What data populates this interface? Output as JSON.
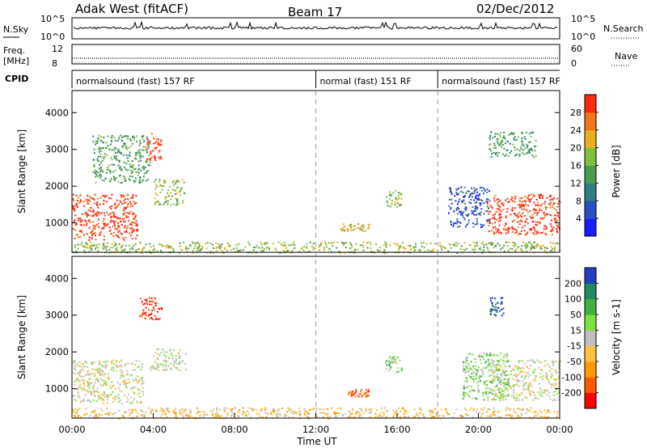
{
  "header": {
    "station": "Adak West (fitACF)",
    "beam": "Beam 17",
    "date": "02/Dec/2012"
  },
  "strip_panels": {
    "nsky_label": "N.Sky",
    "nsky_ticks": [
      "10^5",
      "10^0"
    ],
    "nsearch_label": "N.Search",
    "nsearch_ticks": [
      "10^5",
      "10^0"
    ],
    "freq_label": "Freq.",
    "freq_unit": "[MHz]",
    "freq_ticks": [
      "12",
      "8"
    ],
    "nave_label": "Nave",
    "nave_ticks": [
      "60",
      "0"
    ],
    "cpid_label": "CPID",
    "cpid_segments": [
      {
        "label": "normalsound (fast) 157 RF",
        "start_h": 0,
        "end_h": 12
      },
      {
        "label": "normal (fast) 151 RF",
        "start_h": 12,
        "end_h": 18
      },
      {
        "label": "normalsound (fast) 157 RF",
        "start_h": 18,
        "end_h": 24
      }
    ]
  },
  "chart_data": [
    {
      "type": "heatmap",
      "parameter": "Power",
      "ylabel": "Slant Range [km]",
      "ylim": [
        200,
        4600
      ],
      "yticks": [
        "1000",
        "2000",
        "3000",
        "4000"
      ],
      "xlim": [
        0,
        24
      ],
      "colorbar": {
        "label": "Power [dB]",
        "range": [
          0,
          32
        ],
        "ticks": [
          "4",
          "8",
          "12",
          "16",
          "20",
          "24",
          "28"
        ],
        "colors": [
          "#1a1aff",
          "#2a4fc0",
          "#2e7f7f",
          "#4a9a50",
          "#7fc040",
          "#e8b020",
          "#f07818",
          "#ff2a10"
        ]
      },
      "regions": [
        {
          "t0": 0.0,
          "t1": 3.2,
          "r0": 550,
          "r1": 1800,
          "level": 7
        },
        {
          "t0": 3.6,
          "t1": 4.4,
          "r0": 2700,
          "r1": 3500,
          "level": 7
        },
        {
          "t0": 1.0,
          "t1": 3.8,
          "r0": 2100,
          "r1": 3400,
          "level": 3
        },
        {
          "t0": 4.0,
          "t1": 5.5,
          "r0": 1500,
          "r1": 2200,
          "level": 4
        },
        {
          "t0": 13.2,
          "t1": 14.6,
          "r0": 800,
          "r1": 1000,
          "level": 5
        },
        {
          "t0": 15.4,
          "t1": 16.2,
          "r0": 1450,
          "r1": 1900,
          "level": 4
        },
        {
          "t0": 20.4,
          "t1": 24.0,
          "r0": 700,
          "r1": 1800,
          "level": 7
        },
        {
          "t0": 18.5,
          "t1": 20.5,
          "r0": 900,
          "r1": 2000,
          "level": 1
        },
        {
          "t0": 20.5,
          "t1": 22.8,
          "r0": 2800,
          "r1": 3500,
          "level": 3
        },
        {
          "t0": 0.0,
          "t1": 24.0,
          "r0": 200,
          "r1": 500,
          "level": 4
        }
      ]
    },
    {
      "type": "heatmap",
      "parameter": "Velocity",
      "ylabel": "Slant Range [km]",
      "ylim": [
        200,
        4600
      ],
      "yticks": [
        "1000",
        "2000",
        "3000",
        "4000"
      ],
      "xlabel": "Time UT",
      "xlim": [
        0,
        24
      ],
      "xticks": [
        "00:00",
        "04:00",
        "08:00",
        "12:00",
        "16:00",
        "20:00",
        "00:00"
      ],
      "colorbar": {
        "label": "Velocity [m s-1]",
        "range": [
          -250,
          250
        ],
        "ticks": [
          "200",
          "100",
          "50",
          "15",
          "-15",
          "-50",
          "-100",
          "-200"
        ],
        "colors": [
          "#ff0000",
          "#ff5a00",
          "#ff9a00",
          "#ffc040",
          "#c0c0c0",
          "#80e040",
          "#40b040",
          "#208a60",
          "#2040c0"
        ]
      },
      "regions": [
        {
          "t0": 0.0,
          "t1": 3.5,
          "r0": 600,
          "r1": 1800,
          "level": 4
        },
        {
          "t0": 3.8,
          "t1": 5.6,
          "r0": 1500,
          "r1": 2100,
          "level": 4
        },
        {
          "t0": 3.3,
          "t1": 4.4,
          "r0": 2900,
          "r1": 3500,
          "level": 0
        },
        {
          "t0": 13.5,
          "t1": 14.6,
          "r0": 800,
          "r1": 1000,
          "level": 1
        },
        {
          "t0": 15.4,
          "t1": 16.2,
          "r0": 1450,
          "r1": 1900,
          "level": 5
        },
        {
          "t0": 20.6,
          "t1": 24.0,
          "r0": 700,
          "r1": 1800,
          "level": 4
        },
        {
          "t0": 19.2,
          "t1": 21.5,
          "r0": 700,
          "r1": 2000,
          "level": 5
        },
        {
          "t0": 20.5,
          "t1": 21.2,
          "r0": 3000,
          "r1": 3500,
          "level": 8
        },
        {
          "t0": 0.0,
          "t1": 24.0,
          "r0": 200,
          "r1": 500,
          "level": 3
        }
      ]
    }
  ]
}
